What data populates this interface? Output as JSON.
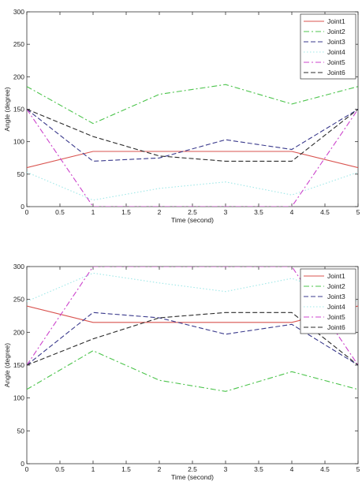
{
  "chart_data": [
    {
      "type": "line",
      "xlabel": "Time (second)",
      "ylabel": "Angle (degree)",
      "xlim": [
        0,
        5
      ],
      "ylim": [
        0,
        300
      ],
      "xticks": [
        "0",
        "0.5",
        "1",
        "1.5",
        "2",
        "2.5",
        "3",
        "3.5",
        "4",
        "4.5",
        "5"
      ],
      "yticks": [
        "0",
        "50",
        "100",
        "150",
        "200",
        "250",
        "300"
      ],
      "grid": false,
      "legend_position": "top-right",
      "series": [
        {
          "name": "Joint1",
          "color": "#d9534f",
          "dash": "solid",
          "x": [
            0,
            1,
            2,
            3,
            4,
            5
          ],
          "y": [
            60,
            85,
            85,
            85,
            85,
            60
          ]
        },
        {
          "name": "Joint2",
          "color": "#4cc44c",
          "dash": "dashdot",
          "x": [
            0,
            1,
            2,
            3,
            4,
            5
          ],
          "y": [
            185,
            128,
            173,
            188,
            158,
            185
          ]
        },
        {
          "name": "Joint3",
          "color": "#3a3a8c",
          "dash": "dashed",
          "x": [
            0,
            1,
            2,
            3,
            4,
            5
          ],
          "y": [
            150,
            70,
            75,
            103,
            88,
            150
          ]
        },
        {
          "name": "Joint4",
          "color": "#9fe8e8",
          "dash": "dotted",
          "x": [
            0,
            1,
            2,
            3,
            4,
            5
          ],
          "y": [
            53,
            10,
            28,
            38,
            18,
            53
          ]
        },
        {
          "name": "Joint5",
          "color": "#cc44cc",
          "dash": "dashdot",
          "x": [
            0,
            1,
            2,
            3,
            4,
            5
          ],
          "y": [
            150,
            0,
            0,
            0,
            0,
            150
          ]
        },
        {
          "name": "Joint6",
          "color": "#2b2b2b",
          "dash": "dashed",
          "x": [
            0,
            1,
            2,
            3,
            4,
            5
          ],
          "y": [
            150,
            108,
            78,
            70,
            70,
            150
          ]
        }
      ]
    },
    {
      "type": "line",
      "xlabel": "Time (second)",
      "ylabel": "Angle (degree)",
      "xlim": [
        0,
        5
      ],
      "ylim": [
        0,
        300
      ],
      "xticks": [
        "0",
        "0.5",
        "1",
        "1.5",
        "2",
        "2.5",
        "3",
        "3.5",
        "4",
        "4.5",
        "5"
      ],
      "yticks": [
        "0",
        "50",
        "100",
        "150",
        "200",
        "250",
        "300"
      ],
      "grid": false,
      "legend_position": "top-right",
      "series": [
        {
          "name": "Joint1",
          "color": "#d9534f",
          "dash": "solid",
          "x": [
            0,
            1,
            2,
            3,
            4,
            5
          ],
          "y": [
            240,
            215,
            215,
            215,
            215,
            240
          ]
        },
        {
          "name": "Joint2",
          "color": "#4cc44c",
          "dash": "dashdot",
          "x": [
            0,
            1,
            2,
            3,
            4,
            5
          ],
          "y": [
            113,
            172,
            127,
            110,
            140,
            113
          ]
        },
        {
          "name": "Joint3",
          "color": "#3a3a8c",
          "dash": "dashed",
          "x": [
            0,
            1,
            2,
            3,
            4,
            5
          ],
          "y": [
            150,
            230,
            222,
            197,
            212,
            150
          ]
        },
        {
          "name": "Joint4",
          "color": "#9fe8e8",
          "dash": "dotted",
          "x": [
            0,
            1,
            2,
            3,
            4,
            5
          ],
          "y": [
            247,
            290,
            275,
            262,
            282,
            247
          ]
        },
        {
          "name": "Joint5",
          "color": "#cc44cc",
          "dash": "dashdot",
          "x": [
            0,
            1,
            2,
            3,
            4,
            5
          ],
          "y": [
            150,
            300,
            300,
            300,
            300,
            150
          ]
        },
        {
          "name": "Joint6",
          "color": "#2b2b2b",
          "dash": "dashed",
          "x": [
            0,
            1,
            2,
            3,
            4,
            5
          ],
          "y": [
            150,
            190,
            222,
            230,
            230,
            150
          ]
        }
      ]
    }
  ]
}
